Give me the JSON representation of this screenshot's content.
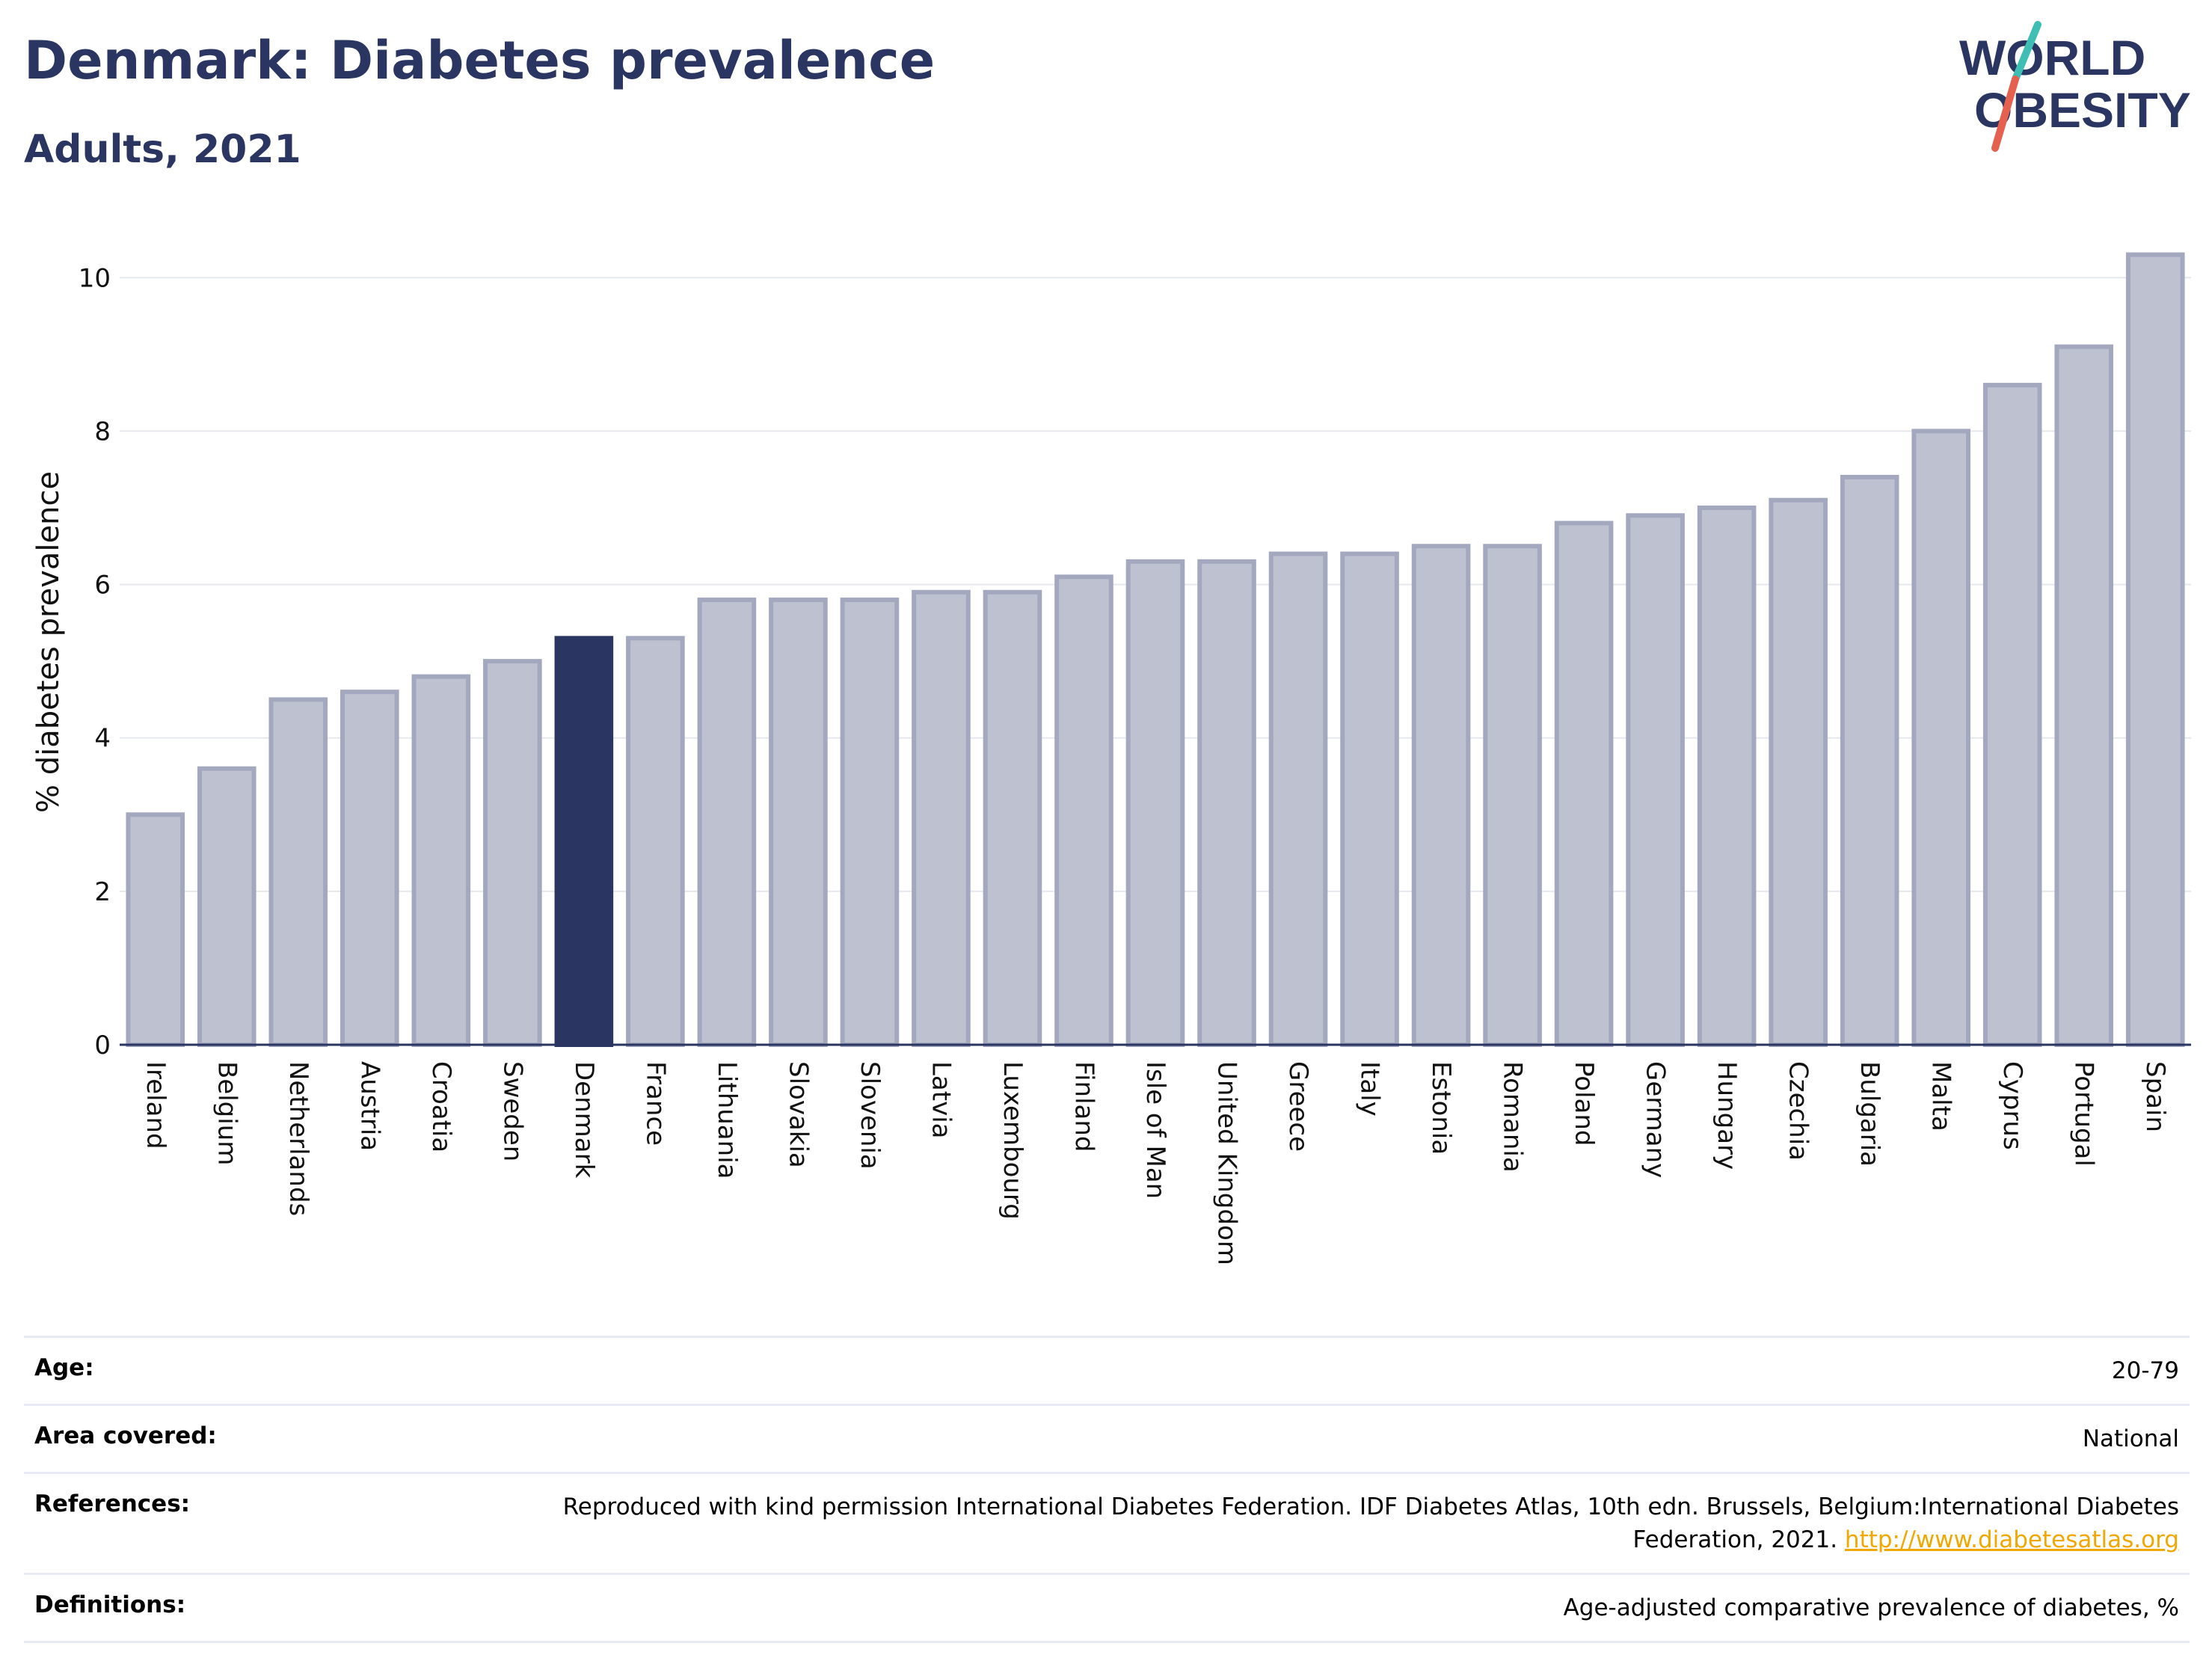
{
  "header": {
    "title": "Denmark: Diabetes prevalence",
    "subtitle": "Adults, 2021"
  },
  "logo": {
    "line1": "WORLD",
    "line2": "OBESITY",
    "accent_colors": [
      "#e5604e",
      "#3fbfb4"
    ]
  },
  "colors": {
    "highlight": "#2a3561",
    "bar": "#bec2d0",
    "bar_border": "#a3a8bf",
    "grid": "#e6e8ef"
  },
  "chart_data": {
    "type": "bar",
    "highlight": "Denmark",
    "ylabel": "% diabetes prevalence",
    "xlabel": "",
    "ylim": [
      0,
      10.5
    ],
    "yticks": [
      0,
      2,
      4,
      6,
      8,
      10
    ],
    "grid": true,
    "categories": [
      "Ireland",
      "Belgium",
      "Netherlands",
      "Austria",
      "Croatia",
      "Sweden",
      "Denmark",
      "France",
      "Lithuania",
      "Slovakia",
      "Slovenia",
      "Latvia",
      "Luxembourg",
      "Finland",
      "Isle of Man",
      "United Kingdom",
      "Greece",
      "Italy",
      "Estonia",
      "Romania",
      "Poland",
      "Germany",
      "Hungary",
      "Czechia",
      "Bulgaria",
      "Malta",
      "Cyprus",
      "Portugal",
      "Spain"
    ],
    "values": [
      3.0,
      3.6,
      4.5,
      4.6,
      4.8,
      5.0,
      5.3,
      5.3,
      5.8,
      5.8,
      5.8,
      5.9,
      5.9,
      6.1,
      6.3,
      6.3,
      6.4,
      6.4,
      6.5,
      6.5,
      6.8,
      6.9,
      7.0,
      7.1,
      7.4,
      8.0,
      8.6,
      9.1,
      10.3
    ]
  },
  "info": {
    "rows": [
      {
        "key": "Age:",
        "value": "20-79"
      },
      {
        "key": "Area covered:",
        "value": "National"
      },
      {
        "key": "References:",
        "value": "Reproduced with kind permission International Diabetes Federation.  IDF Diabetes Atlas, 10th edn. Brussels, Belgium:International Diabetes Federation, 2021. ",
        "link": "http://www.diabetesatlas.org"
      },
      {
        "key": "Definitions:",
        "value": "Age-adjusted comparative prevalence of diabetes, %"
      }
    ]
  }
}
